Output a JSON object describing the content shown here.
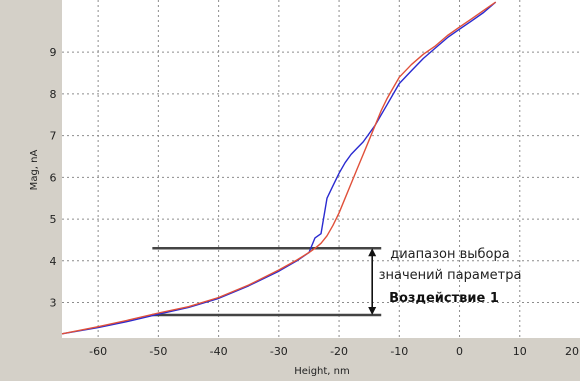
{
  "chart_data": {
    "type": "line",
    "xlabel": "Height, nm",
    "ylabel": "Mag, nA",
    "xlim": [
      -66,
      20
    ],
    "ylim": [
      2.15,
      10.25
    ],
    "x_ticks": [
      -60,
      -50,
      -40,
      -30,
      -20,
      -10,
      0,
      10,
      20
    ],
    "y_ticks": [
      3,
      4,
      5,
      6,
      7,
      8,
      9
    ],
    "grid": true,
    "series": [
      {
        "color": "#2a2ad0",
        "x": [
          -66,
          -60,
          -55,
          -50,
          -45,
          -40,
          -35,
          -30,
          -27,
          -25,
          -24,
          -23,
          -22,
          -21,
          -20,
          -19,
          -18,
          -17,
          -16,
          -15,
          -14,
          -13,
          -12,
          -11,
          -10,
          -8,
          -6,
          -4,
          -2,
          0,
          2,
          4,
          6
        ],
        "y": [
          2.25,
          2.4,
          2.55,
          2.72,
          2.88,
          3.1,
          3.4,
          3.75,
          4.0,
          4.2,
          4.55,
          4.65,
          5.5,
          5.8,
          6.1,
          6.35,
          6.55,
          6.7,
          6.85,
          7.05,
          7.25,
          7.5,
          7.75,
          8.0,
          8.25,
          8.55,
          8.85,
          9.1,
          9.35,
          9.55,
          9.75,
          9.95,
          10.2
        ]
      },
      {
        "color": "#e0503a",
        "x": [
          -66,
          -60,
          -55,
          -50,
          -45,
          -40,
          -35,
          -30,
          -27,
          -25,
          -24,
          -23,
          -22,
          -21,
          -20,
          -19,
          -18,
          -17,
          -16,
          -15,
          -14,
          -13,
          -12,
          -11,
          -10,
          -8,
          -6,
          -4,
          -2,
          0,
          2,
          4,
          6
        ],
        "y": [
          2.25,
          2.42,
          2.58,
          2.75,
          2.9,
          3.12,
          3.42,
          3.78,
          4.02,
          4.2,
          4.3,
          4.42,
          4.6,
          4.85,
          5.15,
          5.5,
          5.85,
          6.2,
          6.55,
          6.9,
          7.25,
          7.6,
          7.9,
          8.15,
          8.4,
          8.7,
          8.95,
          9.15,
          9.4,
          9.6,
          9.8,
          10.0,
          10.2
        ]
      }
    ],
    "reference_lines": [
      {
        "y": 4.3,
        "x_from": -51,
        "x_to": -13
      },
      {
        "y": 2.7,
        "x_from": -51,
        "x_to": -13
      }
    ],
    "range_arrow": {
      "x": -14.5,
      "y_from": 2.7,
      "y_to": 4.3
    },
    "annotation": {
      "lines": [
        "диапазон выбора",
        "значений параметра"
      ],
      "bold_line": "Воздействие 1"
    },
    "colors": {
      "plot_background": "#ffffff",
      "frame_background": "#d4d0c8",
      "grid": "#8c8c8c"
    }
  }
}
